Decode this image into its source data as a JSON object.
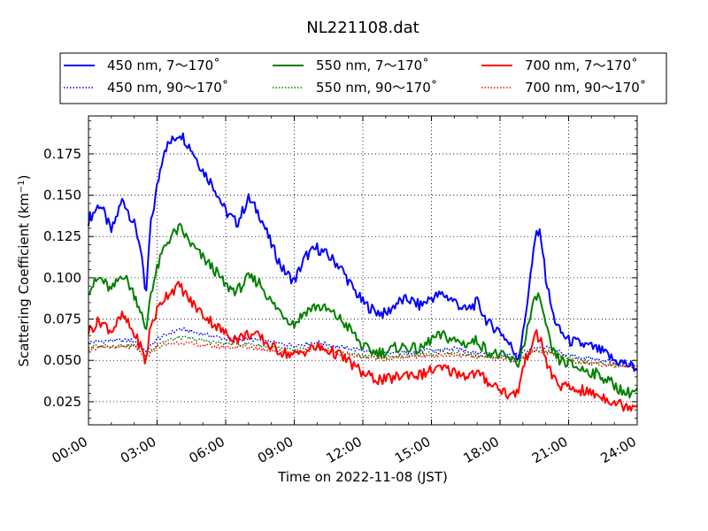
{
  "chart_data": {
    "type": "line",
    "title": "NL221108.dat",
    "xlabel": "Time on 2022-11-08 (JST)",
    "ylabel_text": "Scattering Coefficient (km",
    "ylabel_sup": "−1",
    "ylabel_close": ")",
    "xlim": [
      0,
      24
    ],
    "ylim": [
      0.011,
      0.198
    ],
    "x_ticks": [
      0,
      3,
      6,
      9,
      12,
      15,
      18,
      21,
      24
    ],
    "x_tick_labels": [
      "00:00",
      "03:00",
      "06:00",
      "09:00",
      "12:00",
      "15:00",
      "18:00",
      "21:00",
      "24:00"
    ],
    "y_ticks": [
      0.025,
      0.05,
      0.075,
      0.1,
      0.125,
      0.15,
      0.175
    ],
    "y_tick_labels": [
      "0.025",
      "0.050",
      "0.075",
      "0.100",
      "0.125",
      "0.150",
      "0.175"
    ],
    "grid": true,
    "legend_placement": "top, above plot, 3 columns",
    "series": [
      {
        "name": "450 nm, 7～170˚",
        "color": "#0000ff",
        "style": "solid",
        "x": [
          0,
          0.5,
          1,
          1.5,
          2,
          2.3,
          2.5,
          2.7,
          3,
          3.3,
          3.6,
          4,
          4.5,
          5,
          5.5,
          6,
          6.5,
          7,
          7.5,
          8,
          8.5,
          9,
          9.5,
          10,
          10.5,
          11,
          11.5,
          12,
          12.5,
          13,
          13.5,
          14,
          14.5,
          15,
          15.5,
          16,
          16.5,
          17,
          17.5,
          18,
          18.5,
          18.8,
          19,
          19.3,
          19.6,
          19.8,
          20,
          20.3,
          20.6,
          21,
          21.5,
          22,
          22.5,
          23,
          23.5,
          24
        ],
        "values": [
          0.135,
          0.145,
          0.128,
          0.148,
          0.132,
          0.118,
          0.085,
          0.13,
          0.155,
          0.178,
          0.182,
          0.188,
          0.178,
          0.165,
          0.155,
          0.14,
          0.133,
          0.148,
          0.138,
          0.12,
          0.105,
          0.098,
          0.113,
          0.118,
          0.113,
          0.107,
          0.095,
          0.085,
          0.08,
          0.078,
          0.085,
          0.087,
          0.083,
          0.088,
          0.09,
          0.086,
          0.08,
          0.085,
          0.072,
          0.068,
          0.058,
          0.052,
          0.065,
          0.098,
          0.128,
          0.125,
          0.1,
          0.078,
          0.068,
          0.062,
          0.06,
          0.058,
          0.055,
          0.05,
          0.048,
          0.045
        ]
      },
      {
        "name": "450 nm, 90～170˚",
        "color": "#0000ff",
        "style": "dotted",
        "x": [
          0,
          1,
          2,
          2.5,
          3,
          3.5,
          4,
          5,
          6,
          7,
          8,
          9,
          10,
          11,
          12,
          13,
          14,
          15,
          16,
          17,
          18,
          18.8,
          19.5,
          20,
          21,
          22,
          23,
          24
        ],
        "values": [
          0.061,
          0.062,
          0.062,
          0.055,
          0.063,
          0.066,
          0.069,
          0.066,
          0.063,
          0.063,
          0.061,
          0.059,
          0.061,
          0.058,
          0.056,
          0.054,
          0.055,
          0.056,
          0.057,
          0.055,
          0.054,
          0.053,
          0.058,
          0.058,
          0.053,
          0.051,
          0.049,
          0.047
        ]
      },
      {
        "name": "550 nm, 7～170˚",
        "color": "#008000",
        "style": "solid",
        "x": [
          0,
          0.5,
          1,
          1.5,
          2,
          2.3,
          2.5,
          2.7,
          3,
          3.3,
          3.6,
          4,
          4.5,
          5,
          5.5,
          6,
          6.5,
          7,
          7.5,
          8,
          8.5,
          9,
          9.5,
          10,
          10.5,
          11,
          11.5,
          12,
          12.5,
          13,
          13.5,
          14,
          14.5,
          15,
          15.5,
          16,
          16.5,
          17,
          17.5,
          18,
          18.5,
          18.8,
          19,
          19.3,
          19.6,
          19.8,
          20,
          20.3,
          20.6,
          21,
          21.5,
          22,
          22.5,
          23,
          23.5,
          24
        ],
        "values": [
          0.093,
          0.1,
          0.092,
          0.103,
          0.09,
          0.08,
          0.065,
          0.09,
          0.105,
          0.118,
          0.125,
          0.13,
          0.12,
          0.112,
          0.105,
          0.095,
          0.092,
          0.1,
          0.097,
          0.085,
          0.078,
          0.072,
          0.08,
          0.083,
          0.08,
          0.075,
          0.068,
          0.058,
          0.055,
          0.055,
          0.058,
          0.058,
          0.056,
          0.063,
          0.065,
          0.062,
          0.06,
          0.062,
          0.055,
          0.053,
          0.05,
          0.048,
          0.058,
          0.075,
          0.09,
          0.085,
          0.07,
          0.055,
          0.05,
          0.048,
          0.045,
          0.043,
          0.04,
          0.035,
          0.03,
          0.032
        ]
      },
      {
        "name": "550 nm, 90～170˚",
        "color": "#008000",
        "style": "dotted",
        "x": [
          0,
          1,
          2,
          2.5,
          3,
          3.5,
          4,
          5,
          6,
          7,
          8,
          9,
          10,
          11,
          12,
          13,
          14,
          15,
          16,
          17,
          18,
          18.8,
          19.5,
          20,
          21,
          22,
          23,
          24
        ],
        "values": [
          0.058,
          0.059,
          0.059,
          0.053,
          0.06,
          0.062,
          0.064,
          0.062,
          0.06,
          0.06,
          0.058,
          0.056,
          0.058,
          0.055,
          0.053,
          0.052,
          0.053,
          0.054,
          0.055,
          0.053,
          0.052,
          0.051,
          0.056,
          0.056,
          0.051,
          0.049,
          0.047,
          0.046
        ]
      },
      {
        "name": "700 nm, 7～170˚",
        "color": "#ff0000",
        "style": "solid",
        "x": [
          0,
          0.5,
          1,
          1.5,
          2,
          2.3,
          2.5,
          2.7,
          3,
          3.3,
          3.6,
          4,
          4.5,
          5,
          5.5,
          6,
          6.5,
          7,
          7.5,
          8,
          8.5,
          9,
          9.5,
          10,
          10.5,
          11,
          11.5,
          12,
          12.5,
          13,
          13.5,
          14,
          14.5,
          15,
          15.5,
          16,
          16.5,
          17,
          17.5,
          18,
          18.5,
          18.8,
          19,
          19.3,
          19.6,
          19.8,
          20,
          20.3,
          20.6,
          21,
          21.5,
          22,
          22.5,
          23,
          23.5,
          24
        ],
        "values": [
          0.068,
          0.074,
          0.068,
          0.077,
          0.066,
          0.058,
          0.048,
          0.07,
          0.08,
          0.088,
          0.092,
          0.095,
          0.085,
          0.078,
          0.072,
          0.066,
          0.063,
          0.066,
          0.064,
          0.058,
          0.055,
          0.053,
          0.056,
          0.058,
          0.056,
          0.053,
          0.048,
          0.042,
          0.039,
          0.038,
          0.04,
          0.042,
          0.041,
          0.044,
          0.045,
          0.043,
          0.041,
          0.042,
          0.037,
          0.033,
          0.028,
          0.032,
          0.045,
          0.058,
          0.065,
          0.062,
          0.05,
          0.04,
          0.035,
          0.033,
          0.032,
          0.03,
          0.028,
          0.025,
          0.022,
          0.024
        ]
      },
      {
        "name": "700 nm, 90～170˚",
        "color": "#ff0000",
        "style": "dotted",
        "x": [
          0,
          1,
          2,
          2.5,
          3,
          3.5,
          4,
          5,
          6,
          7,
          8,
          9,
          10,
          11,
          12,
          13,
          14,
          15,
          16,
          17,
          18,
          18.8,
          19.5,
          20,
          21,
          22,
          23,
          24
        ],
        "values": [
          0.057,
          0.058,
          0.058,
          0.052,
          0.058,
          0.06,
          0.061,
          0.059,
          0.058,
          0.058,
          0.056,
          0.055,
          0.057,
          0.054,
          0.052,
          0.051,
          0.052,
          0.053,
          0.053,
          0.052,
          0.051,
          0.05,
          0.055,
          0.055,
          0.05,
          0.048,
          0.047,
          0.046
        ]
      }
    ]
  }
}
